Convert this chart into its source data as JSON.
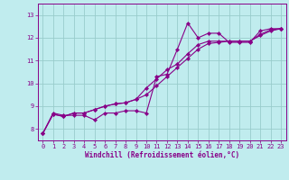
{
  "xlabel": "Windchill (Refroidissement éolien,°C)",
  "background_color": "#c0ecee",
  "line_color": "#880088",
  "grid_color": "#99cccc",
  "xlim": [
    -0.5,
    23.5
  ],
  "ylim": [
    7.5,
    13.5
  ],
  "yticks": [
    8,
    9,
    10,
    11,
    12,
    13
  ],
  "xticks": [
    0,
    1,
    2,
    3,
    4,
    5,
    6,
    7,
    8,
    9,
    10,
    11,
    12,
    13,
    14,
    15,
    16,
    17,
    18,
    19,
    20,
    21,
    22,
    23
  ],
  "series": [
    [
      7.8,
      8.7,
      8.6,
      8.6,
      8.6,
      8.4,
      8.7,
      8.7,
      8.8,
      8.8,
      8.7,
      10.3,
      10.4,
      11.5,
      12.65,
      12.0,
      12.2,
      12.2,
      11.8,
      11.8,
      11.8,
      12.3,
      12.4,
      12.4
    ],
    [
      7.8,
      8.65,
      8.55,
      8.7,
      8.7,
      8.85,
      9.0,
      9.1,
      9.15,
      9.3,
      9.8,
      10.2,
      10.6,
      10.85,
      11.3,
      11.7,
      11.85,
      11.85,
      11.85,
      11.85,
      11.85,
      12.15,
      12.35,
      12.4
    ],
    [
      7.8,
      8.65,
      8.55,
      8.7,
      8.7,
      8.85,
      9.0,
      9.1,
      9.15,
      9.3,
      9.5,
      9.9,
      10.3,
      10.7,
      11.1,
      11.5,
      11.75,
      11.8,
      11.85,
      11.85,
      11.85,
      12.1,
      12.3,
      12.4
    ]
  ]
}
